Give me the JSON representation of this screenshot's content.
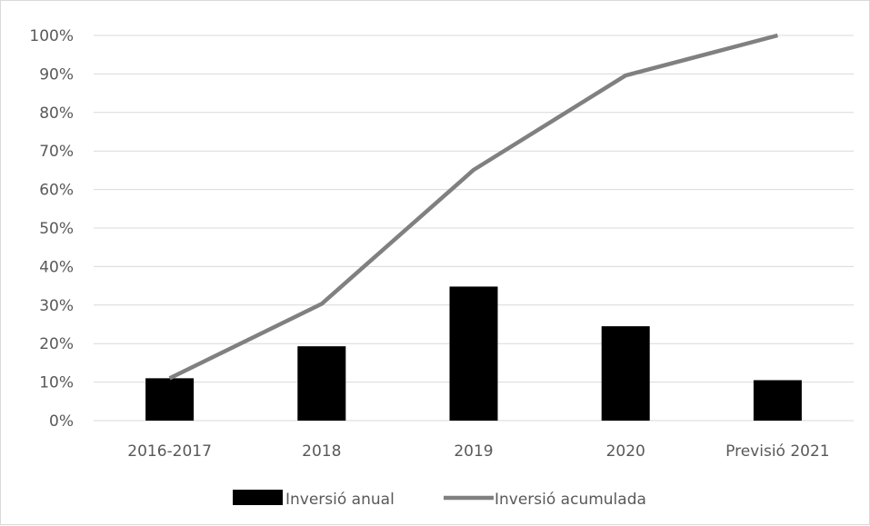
{
  "chart_data": {
    "type": "bar",
    "categories": [
      "2016-2017",
      "2018",
      "2019",
      "2020",
      "Previsió 2021"
    ],
    "series": [
      {
        "name": "Inversió anual",
        "type": "bar",
        "color": "#000000",
        "values": [
          0.11,
          0.193,
          0.348,
          0.245,
          0.105
        ]
      },
      {
        "name": "Inversió acumulada",
        "type": "line",
        "color": "#808080",
        "values": [
          0.11,
          0.303,
          0.651,
          0.896,
          1.0
        ]
      }
    ],
    "y_ticks": [
      {
        "value": 0.0,
        "label": "0%"
      },
      {
        "value": 0.1,
        "label": "10%"
      },
      {
        "value": 0.2,
        "label": "20%"
      },
      {
        "value": 0.3,
        "label": "30%"
      },
      {
        "value": 0.4,
        "label": "40%"
      },
      {
        "value": 0.5,
        "label": "50%"
      },
      {
        "value": 0.6,
        "label": "60%"
      },
      {
        "value": 0.7,
        "label": "70%"
      },
      {
        "value": 0.8,
        "label": "80%"
      },
      {
        "value": 0.9,
        "label": "90%"
      },
      {
        "value": 1.0,
        "label": "100%"
      }
    ],
    "ylim": [
      0,
      1
    ],
    "grid": true,
    "gridline_color": "#d9d9d9",
    "legend_position": "bottom",
    "title": "",
    "xlabel": "",
    "ylabel": ""
  }
}
